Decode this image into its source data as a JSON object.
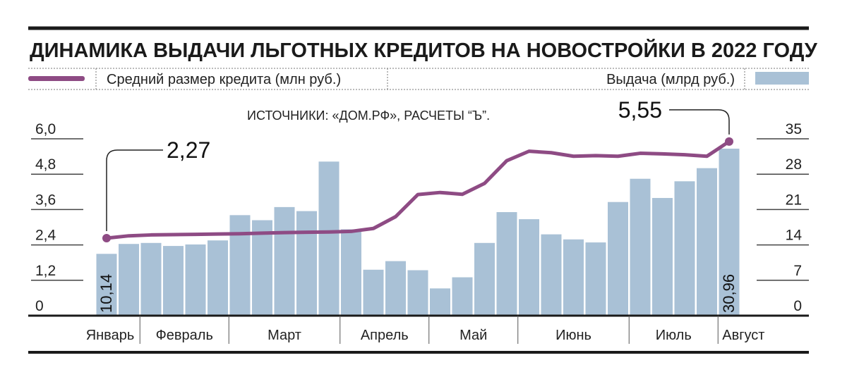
{
  "chart_data": {
    "type": "bar",
    "title": "ДИНАМИКА ВЫДАЧИ ЛЬГОТНЫХ КРЕДИТОВ НА НОВОСТРОЙКИ В 2022 ГОДУ",
    "source": "ИСТОЧНИКИ: «ДОМ.РФ», РАСЧЕТЫ “Ъ”.",
    "legend": {
      "line_label": "Средний размер кредита (млн руб.)",
      "bar_label": "Выдача (млрд руб.)",
      "line_color": "#8e4b84",
      "bar_color": "#a9c1d6"
    },
    "left_axis": {
      "ticks": [
        "6,0",
        "4,8",
        "3,6",
        "2,4",
        "1,2",
        "0"
      ],
      "range": [
        0,
        6.0
      ]
    },
    "right_axis": {
      "ticks": [
        "35",
        "28",
        "21",
        "14",
        "7",
        "0"
      ],
      "range": [
        0,
        35
      ]
    },
    "months": [
      "Январь",
      "Февраль",
      "Март",
      "Апрель",
      "Май",
      "Июнь",
      "Июль",
      "Август"
    ],
    "month_week_counts": [
      2,
      4,
      5,
      4,
      4,
      5,
      4,
      1
    ],
    "series": [
      {
        "name": "Выдача (млрд руб.)",
        "type": "bar",
        "axis": "right",
        "values": [
          10.14,
          12.1,
          12.3,
          11.7,
          12.0,
          12.8,
          17.8,
          16.8,
          19.4,
          18.6,
          28.4,
          15.0,
          7.0,
          8.7,
          6.9,
          3.3,
          5.5,
          12.3,
          18.4,
          17.0,
          14.0,
          13.0,
          12.4,
          20.4,
          25.0,
          21.2,
          24.5,
          27.1,
          30.96
        ]
      },
      {
        "name": "Средний размер кредита (млн руб.)",
        "type": "line",
        "axis": "left",
        "values": [
          2.27,
          2.35,
          2.38,
          2.39,
          2.4,
          2.41,
          2.42,
          2.44,
          2.46,
          2.47,
          2.48,
          2.5,
          2.6,
          3.0,
          3.75,
          3.82,
          3.76,
          4.13,
          4.9,
          5.22,
          5.17,
          5.05,
          5.07,
          5.05,
          5.15,
          5.13,
          5.1,
          5.05,
          5.55
        ]
      }
    ],
    "annotations": [
      {
        "text": "2,27",
        "series": "Средний размер кредита (млн руб.)",
        "index": 0
      },
      {
        "text": "5,55",
        "series": "Средний размер кредита (млн руб.)",
        "index": 28
      },
      {
        "text": "10,14",
        "series": "Выдача (млрд руб.)",
        "index": 0
      },
      {
        "text": "30,96",
        "series": "Выдача (млрд руб.)",
        "index": 28
      }
    ],
    "grid": false
  }
}
